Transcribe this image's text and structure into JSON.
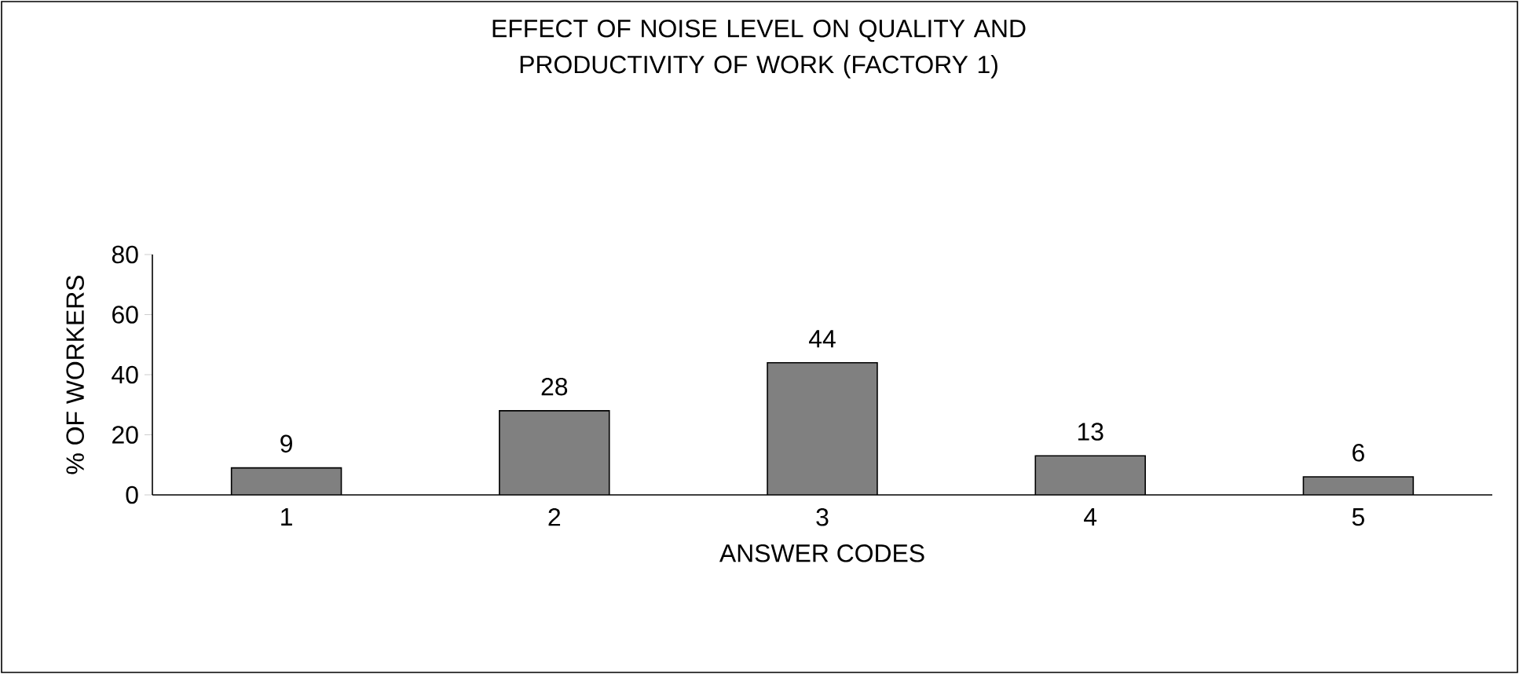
{
  "chart_data": {
    "type": "bar",
    "title": "EFFECT OF NOISE LEVEL ON QUALITY  AND PRODUCTIVITY  OF WORK (FACTORY 1)",
    "xlabel": "ANSWER CODES",
    "ylabel": "% OF WORKERS",
    "categories": [
      "1",
      "2",
      "3",
      "4",
      "5"
    ],
    "values": [
      9,
      28,
      44,
      13,
      6
    ],
    "color": "#808080",
    "ylim": [
      0,
      80
    ],
    "yticks": [
      0,
      20,
      40,
      60,
      80
    ],
    "grid": false,
    "data_labels": true
  }
}
